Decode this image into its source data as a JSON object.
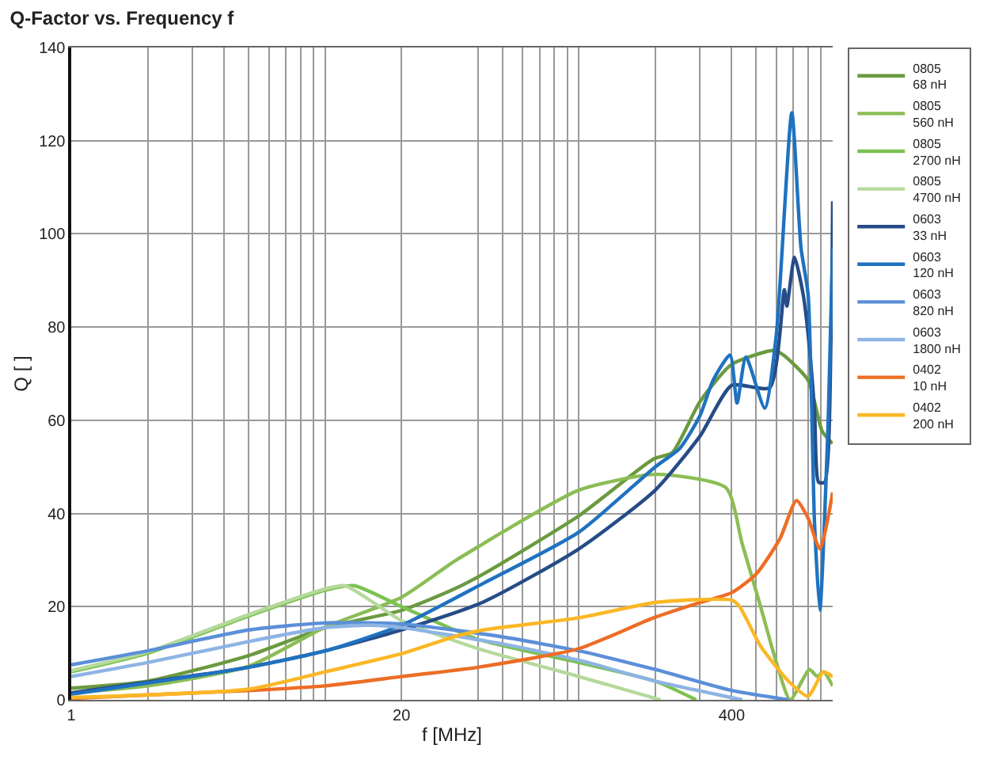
{
  "chart_data": {
    "type": "line",
    "title": "Q-Factor vs. Frequency f",
    "xlabel": "f [MHz]",
    "ylabel": "Q [ ]",
    "log": "x",
    "grid": true,
    "legend": "right",
    "line_style": "solid",
    "marker": "none",
    "xlim": [
      1,
      1000
    ],
    "ylim": [
      0,
      140
    ],
    "yticks": [
      0,
      20,
      40,
      60,
      80,
      100,
      120,
      140
    ],
    "xticks": [
      1,
      {
        "value": 2,
        "label": null
      },
      {
        "value": 3,
        "label": null
      },
      {
        "value": 4,
        "label": null
      },
      {
        "value": 5,
        "label": null
      },
      {
        "value": 6,
        "label": null
      },
      {
        "value": 7,
        "label": null
      },
      {
        "value": 8,
        "label": null
      },
      {
        "value": 9,
        "label": null
      },
      {
        "value": 10,
        "label": null
      },
      20,
      {
        "value": 40,
        "label": null
      },
      {
        "value": 50,
        "label": null
      },
      {
        "value": 60,
        "label": null
      },
      {
        "value": 70,
        "label": null
      },
      {
        "value": 80,
        "label": null
      },
      {
        "value": 90,
        "label": null
      },
      {
        "value": 100,
        "label": null
      },
      {
        "value": 200,
        "label": null
      },
      {
        "value": 300,
        "label": null
      },
      400,
      {
        "value": 500,
        "label": null
      },
      {
        "value": 600,
        "label": null
      },
      {
        "value": 700,
        "label": null
      },
      {
        "value": 800,
        "label": null
      },
      {
        "value": 900,
        "label": null
      }
    ],
    "series": [
      {
        "name": "0805\n68 nH",
        "color": "#6a9a3f",
        "x": [
          1,
          2,
          5,
          10,
          20,
          32,
          42,
          100,
          197,
          233,
          300,
          400,
          590,
          640,
          800,
          910,
          1000
        ],
        "values": [
          2.5,
          4,
          9.5,
          15.5,
          19.2,
          23.7,
          27,
          39.5,
          51.7,
          53,
          64,
          72,
          75,
          74,
          68.6,
          57.6,
          55
        ]
      },
      {
        "name": "0805\n560 nH",
        "color": "#8bbd55",
        "x": [
          1,
          2,
          5,
          10,
          20,
          32,
          42,
          50,
          100,
          200,
          380,
          440,
          520,
          600,
          680,
          810,
          870,
          920,
          1000
        ],
        "values": [
          1.5,
          3,
          7.2,
          15.6,
          22,
          29.6,
          33.5,
          36,
          45,
          48.4,
          45.5,
          33.5,
          20,
          8,
          0,
          6.5,
          5,
          6,
          3
        ]
      },
      {
        "name": "0805\n2700 nH",
        "color": "#7cc250",
        "x": [
          1,
          2,
          5,
          10,
          13,
          20,
          40,
          100,
          200,
          290
        ],
        "values": [
          6,
          10,
          18,
          23.5,
          24.5,
          20,
          13,
          8,
          4,
          0
        ]
      },
      {
        "name": "0805\n4700 nH",
        "color": "#b5d99c",
        "x": [
          1,
          2,
          5,
          10,
          12,
          20,
          40,
          100,
          210
        ],
        "values": [
          6.3,
          10.3,
          18.3,
          23.8,
          24.5,
          17,
          11,
          5,
          0
        ]
      },
      {
        "name": "0603\n33 nH",
        "color": "#264c87",
        "x": [
          1,
          5,
          10,
          20,
          42,
          100,
          200,
          300,
          400,
          565,
          645,
          660,
          707,
          765,
          800,
          848,
          880,
          930,
          985,
          1000
        ],
        "values": [
          1.5,
          7,
          10.5,
          15,
          21,
          32.4,
          45,
          56.6,
          67.5,
          67,
          88,
          84.5,
          95,
          87,
          78.5,
          62,
          46.7,
          46.7,
          78.5,
          107
        ]
      },
      {
        "name": "0603\n120 nH",
        "color": "#1f72c0",
        "x": [
          1,
          5,
          10,
          20,
          42,
          100,
          200,
          250,
          300,
          338,
          394,
          420,
          455,
          540,
          600,
          690,
          750,
          800,
          848,
          890,
          960,
          1000
        ],
        "values": [
          1.2,
          7,
          10.5,
          16,
          25,
          36,
          50,
          54,
          61,
          68.6,
          74,
          63.7,
          73.6,
          62.6,
          78.5,
          126,
          97,
          87,
          38,
          19.2,
          60,
          97
        ]
      },
      {
        "name": "0603\n820 nH",
        "color": "#5b8fd8",
        "x": [
          1,
          2,
          5,
          10,
          20,
          50,
          100,
          200,
          400,
          670
        ],
        "values": [
          7.5,
          10.5,
          15,
          16.5,
          16.3,
          13.5,
          10.5,
          6.5,
          2,
          0
        ]
      },
      {
        "name": "0603\n1800 nH",
        "color": "#8db4e3",
        "x": [
          1,
          2,
          5,
          10,
          15,
          20,
          50,
          100,
          200,
          440
        ],
        "values": [
          5,
          8,
          12.5,
          15.5,
          16,
          15.5,
          12,
          8.5,
          4,
          0
        ]
      },
      {
        "name": "0402\n10 nH",
        "color": "#ed6d25",
        "x": [
          1,
          5,
          10,
          20,
          40,
          100,
          197,
          300,
          400,
          500,
          620,
          720,
          800,
          890,
          1000
        ],
        "values": [
          0.3,
          2,
          3,
          5,
          7,
          11,
          17.6,
          20.9,
          23,
          27,
          34.6,
          42.8,
          39,
          32.4,
          44.5
        ]
      },
      {
        "name": "0402\n200 nH",
        "color": "#fbb725",
        "x": [
          1,
          5,
          10,
          20,
          32,
          42,
          100,
          200,
          400,
          430,
          520,
          670,
          800,
          920,
          1000
        ],
        "values": [
          0.5,
          2.3,
          6,
          9.9,
          13.5,
          15,
          17.6,
          20.9,
          21.4,
          20,
          11.5,
          4,
          0.8,
          6,
          5
        ]
      }
    ]
  }
}
